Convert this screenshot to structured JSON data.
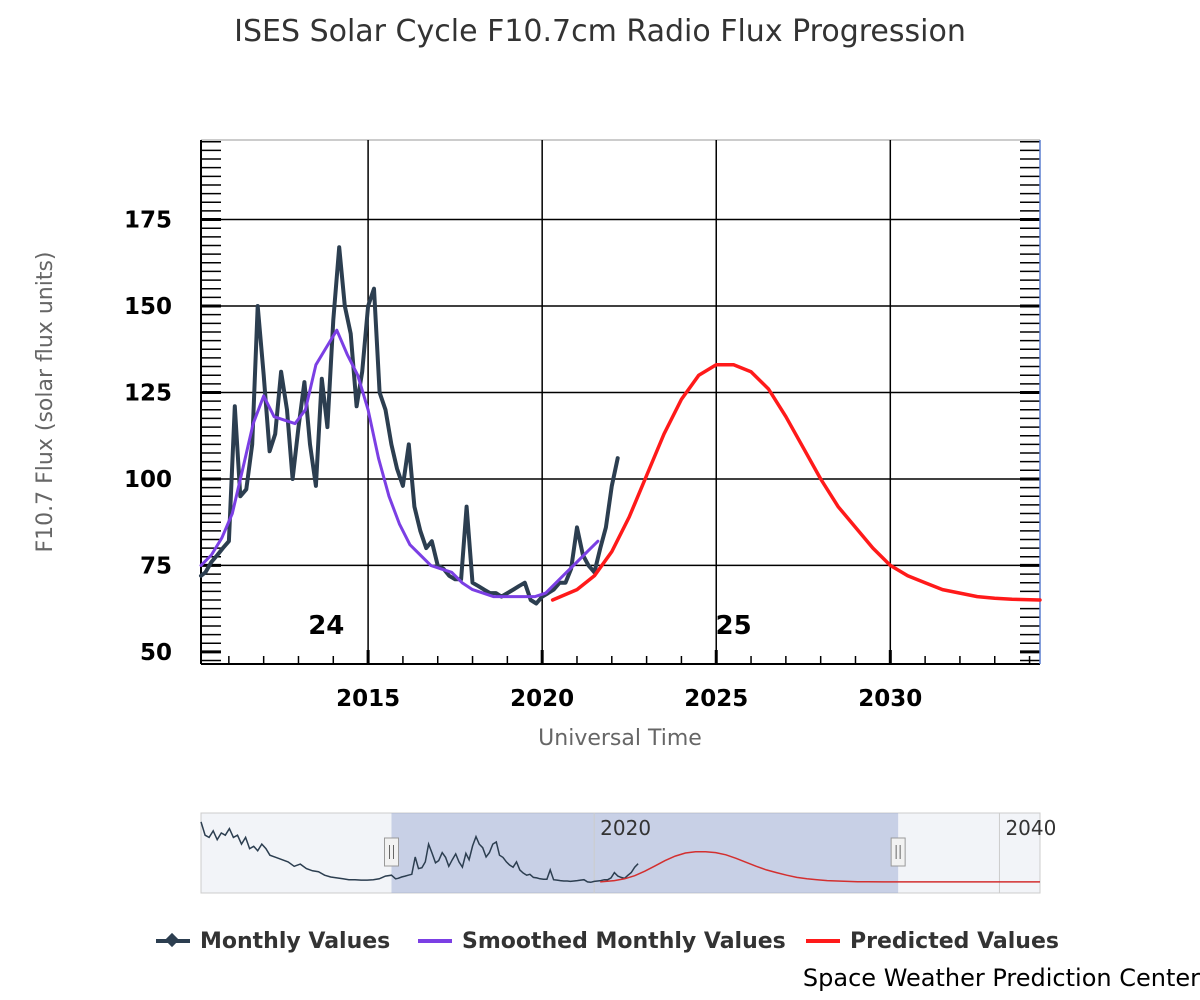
{
  "chart_data": {
    "type": "line",
    "title": "ISES Solar Cycle F10.7cm Radio Flux Progression",
    "xlabel": "Universal Time",
    "ylabel": "F10.7 Flux (solar flux units)",
    "credit": "Space Weather Prediction Center",
    "xlim": [
      2010.2,
      2034.3
    ],
    "ylim": [
      46.5,
      198
    ],
    "x_ticks": [
      2015,
      2020,
      2025,
      2030
    ],
    "x_tick_labels": [
      "2015",
      "2020",
      "2025",
      "2030"
    ],
    "y_ticks": [
      50,
      75,
      100,
      125,
      150,
      175
    ],
    "y_tick_labels": [
      "50",
      "75",
      "100",
      "125",
      "150",
      "175"
    ],
    "grid": true,
    "legend_position": "bottom",
    "cycle_labels": [
      {
        "text": "24",
        "x": 2013.8,
        "y": 58
      },
      {
        "text": "25",
        "x": 2025.5,
        "y": 58
      }
    ],
    "series": [
      {
        "name": "Monthly Values",
        "color": "#2c3e50",
        "marker": "diamond",
        "x": [
          2010.2,
          2010.33,
          2010.5,
          2010.67,
          2010.83,
          2011.0,
          2011.17,
          2011.33,
          2011.5,
          2011.67,
          2011.83,
          2012.0,
          2012.17,
          2012.33,
          2012.5,
          2012.67,
          2012.83,
          2013.0,
          2013.17,
          2013.33,
          2013.5,
          2013.67,
          2013.83,
          2014.0,
          2014.17,
          2014.33,
          2014.5,
          2014.67,
          2014.83,
          2015.0,
          2015.17,
          2015.33,
          2015.5,
          2015.67,
          2015.83,
          2016.0,
          2016.17,
          2016.33,
          2016.5,
          2016.67,
          2016.83,
          2017.0,
          2017.17,
          2017.33,
          2017.5,
          2017.67,
          2017.83,
          2018.0,
          2018.17,
          2018.33,
          2018.5,
          2018.67,
          2018.83,
          2019.0,
          2019.17,
          2019.33,
          2019.5,
          2019.67,
          2019.83,
          2020.0,
          2020.17,
          2020.33,
          2020.5,
          2020.67,
          2020.83,
          2021.0,
          2021.17,
          2021.33,
          2021.5,
          2021.67,
          2021.83,
          2022.0,
          2022.17
        ],
        "y": [
          72,
          73,
          76,
          78,
          80,
          82,
          121,
          95,
          97,
          110,
          150,
          130,
          108,
          113,
          131,
          120,
          100,
          115,
          128,
          110,
          98,
          129,
          115,
          146,
          167,
          150,
          142,
          121,
          131,
          150,
          155,
          125,
          120,
          110,
          103,
          98,
          110,
          92,
          85,
          80,
          82,
          75,
          74,
          72,
          71,
          71,
          92,
          70,
          69,
          68,
          67,
          67,
          66,
          67,
          68,
          69,
          70,
          65,
          64,
          66,
          67,
          68,
          70,
          70,
          74,
          86,
          78,
          75,
          73,
          80,
          86,
          98,
          106
        ]
      },
      {
        "name": "Smoothed Monthly Values",
        "color": "#7b3fe4",
        "x": [
          2010.2,
          2010.5,
          2010.8,
          2011.1,
          2011.4,
          2011.7,
          2012.0,
          2012.3,
          2012.6,
          2012.9,
          2013.2,
          2013.5,
          2013.8,
          2014.1,
          2014.4,
          2014.7,
          2015.0,
          2015.3,
          2015.6,
          2015.9,
          2016.2,
          2016.5,
          2016.8,
          2017.1,
          2017.4,
          2017.7,
          2018.0,
          2018.3,
          2018.6,
          2018.9,
          2019.2,
          2019.5,
          2019.8,
          2020.1,
          2020.4,
          2020.7,
          2021.0,
          2021.3,
          2021.6
        ],
        "y": [
          75,
          78,
          83,
          90,
          103,
          116,
          124,
          118,
          117,
          116,
          120,
          133,
          138,
          143,
          136,
          130,
          120,
          106,
          95,
          87,
          81,
          78,
          75,
          74,
          73,
          70,
          68,
          67,
          66,
          66,
          66,
          66,
          66,
          67,
          70,
          73,
          76,
          79,
          82
        ]
      },
      {
        "name": "Predicted Values",
        "color": "#ff1a1a",
        "x": [
          2020.3,
          2021.0,
          2021.5,
          2022.0,
          2022.5,
          2023.0,
          2023.5,
          2024.0,
          2024.5,
          2025.0,
          2025.5,
          2026.0,
          2026.5,
          2027.0,
          2027.5,
          2028.0,
          2028.5,
          2029.0,
          2029.5,
          2030.0,
          2030.5,
          2031.0,
          2031.5,
          2032.0,
          2032.5,
          2033.0,
          2033.5,
          2034.3
        ],
        "y": [
          65,
          68,
          72,
          79,
          89,
          101,
          113,
          123,
          130,
          133,
          133,
          131,
          126,
          118,
          109,
          100,
          92,
          86,
          80,
          75,
          72,
          70,
          68,
          67,
          66,
          65.5,
          65.2,
          65
        ]
      }
    ]
  },
  "navigator": {
    "xlim": [
      2000.6,
      2042.0
    ],
    "ylim": [
      40,
      220
    ],
    "tick_labels": [
      {
        "text": "2020",
        "x": 2020
      },
      {
        "text": "2040",
        "x": 2040
      }
    ],
    "selection": [
      2010.2,
      2034.3
    ],
    "colors": {
      "mask": "#9dabd4",
      "background": "#f2f4f8",
      "line": "#2c3e50",
      "predicted": "#d32f2f"
    },
    "monthly_x": [
      2000.6,
      2000.8,
      2001.0,
      2001.2,
      2001.4,
      2001.6,
      2001.8,
      2002.0,
      2002.2,
      2002.4,
      2002.6,
      2002.8,
      2003.0,
      2003.2,
      2003.4,
      2003.6,
      2003.8,
      2004.0,
      2004.3,
      2004.6,
      2004.9,
      2005.2,
      2005.5,
      2005.8,
      2006.1,
      2006.4,
      2006.7,
      2007.0,
      2007.3,
      2007.6,
      2007.9,
      2008.2,
      2008.5,
      2008.8,
      2009.1,
      2009.4,
      2009.7,
      2010.0
    ],
    "monthly_y": [
      200,
      170,
      165,
      180,
      160,
      175,
      170,
      185,
      165,
      170,
      150,
      165,
      140,
      145,
      135,
      150,
      140,
      125,
      120,
      115,
      110,
      100,
      105,
      95,
      90,
      88,
      80,
      76,
      74,
      72,
      70,
      70,
      69,
      69,
      70,
      72,
      78,
      80
    ]
  },
  "legend": {
    "items": [
      {
        "label": "Monthly Values",
        "color": "#2c3e50"
      },
      {
        "label": "Smoothed Monthly Values",
        "color": "#7b3fe4"
      },
      {
        "label": "Predicted Values",
        "color": "#ff1a1a"
      }
    ]
  }
}
